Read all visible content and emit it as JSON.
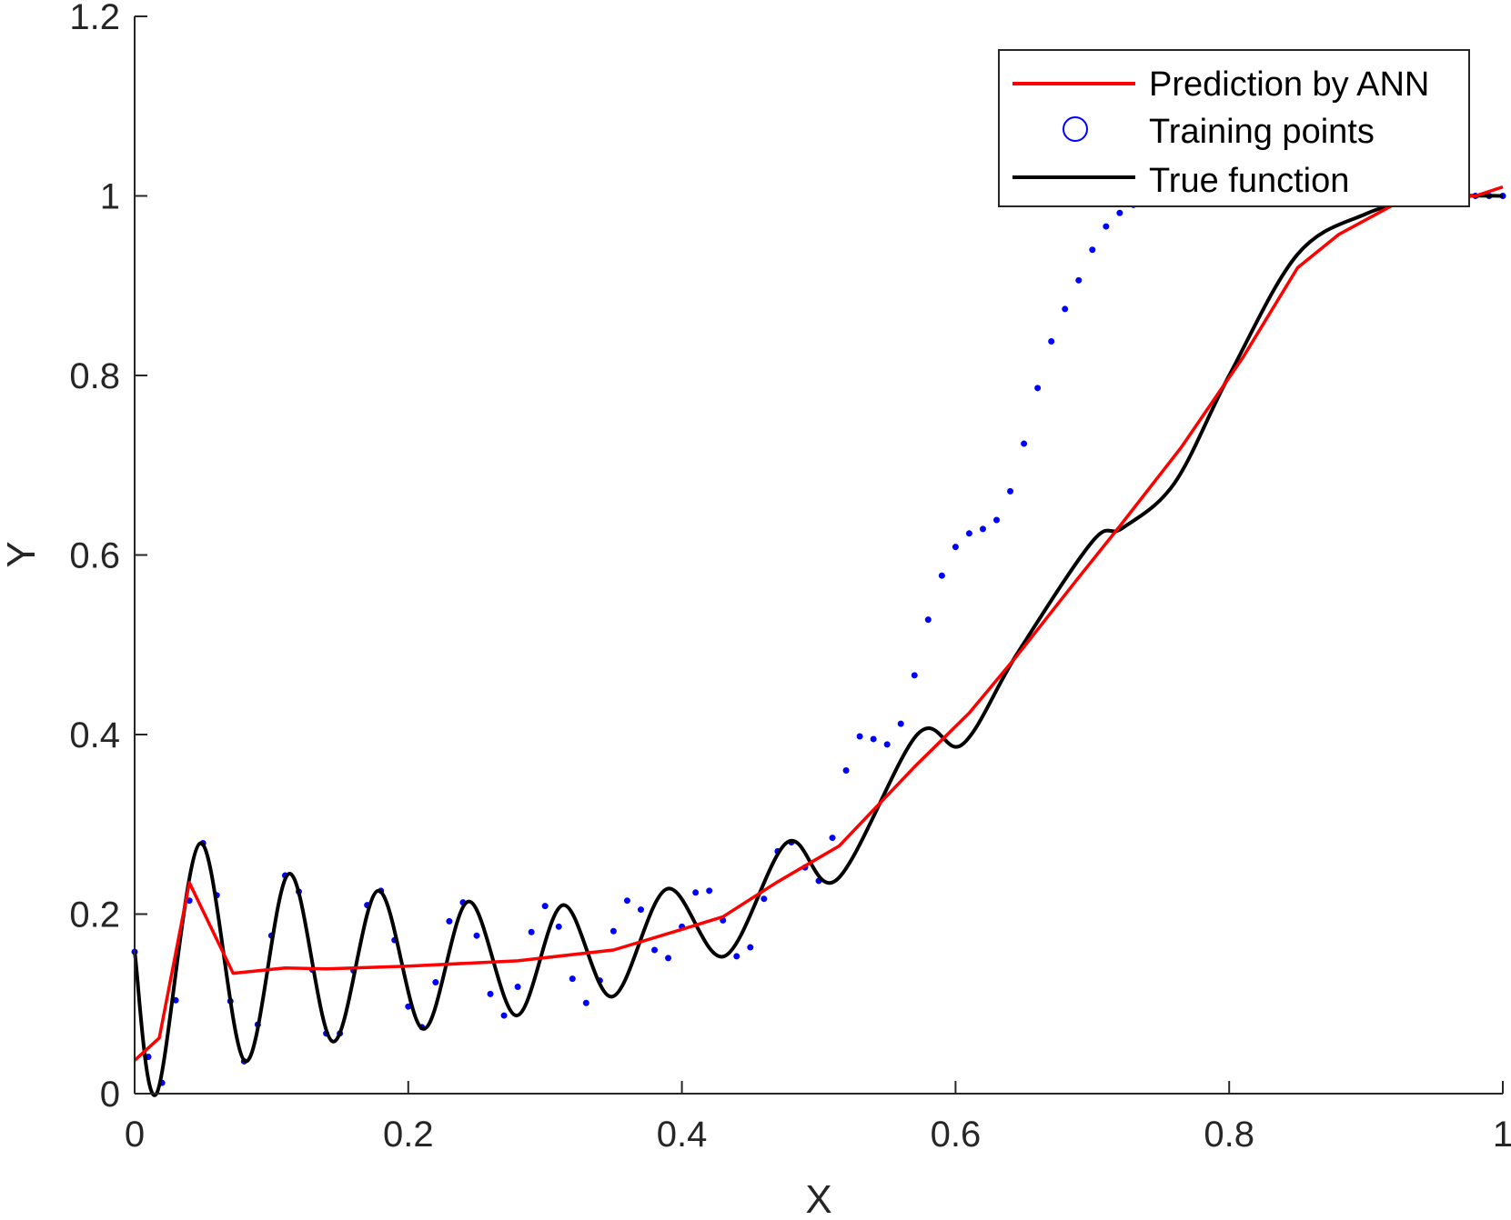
{
  "chart_data": {
    "type": "line",
    "xlabel": "X",
    "ylabel": "Y",
    "xlim": [
      0,
      1
    ],
    "ylim": [
      0,
      1.2
    ],
    "xticks": [
      0,
      0.2,
      0.4,
      0.6,
      0.8,
      1
    ],
    "xtick_labels": [
      "0",
      "0.2",
      "0.4",
      "0.6",
      "0.8",
      "1"
    ],
    "yticks": [
      0,
      0.2,
      0.4,
      0.6,
      0.8,
      1,
      1.2
    ],
    "ytick_labels": [
      "0",
      "0.2",
      "0.4",
      "0.6",
      "0.8",
      "1",
      "1.2"
    ],
    "grid": false,
    "legend_position": "top-right",
    "series": [
      {
        "name": "Prediction by ANN",
        "color": "#ff0000",
        "style": "line",
        "x": [
          0,
          0.018,
          0.04,
          0.072,
          0.11,
          0.14,
          0.2,
          0.28,
          0.35,
          0.4,
          0.43,
          0.47,
          0.515,
          0.57,
          0.61,
          0.645,
          0.69,
          0.72,
          0.765,
          0.81,
          0.85,
          0.88,
          0.92,
          0.95,
          0.98,
          1.0
        ],
        "y": [
          0.037,
          0.062,
          0.235,
          0.134,
          0.14,
          0.139,
          0.142,
          0.148,
          0.16,
          0.183,
          0.197,
          0.236,
          0.276,
          0.364,
          0.424,
          0.488,
          0.575,
          0.632,
          0.72,
          0.82,
          0.92,
          0.957,
          0.99,
          0.997,
          1.0,
          1.01
        ]
      },
      {
        "name": "Training points",
        "color": "#0000ff",
        "style": "markers",
        "x": [
          0,
          0.01,
          0.02,
          0.03,
          0.04,
          0.05,
          0.06,
          0.07,
          0.08,
          0.09,
          0.1,
          0.11,
          0.12,
          0.13,
          0.14,
          0.15,
          0.16,
          0.17,
          0.18,
          0.19,
          0.2,
          0.21,
          0.22,
          0.23,
          0.24,
          0.25,
          0.26,
          0.27,
          0.28,
          0.29,
          0.3,
          0.31,
          0.32,
          0.33,
          0.34,
          0.35,
          0.36,
          0.37,
          0.38,
          0.39,
          0.4,
          0.41,
          0.42,
          0.43,
          0.44,
          0.45,
          0.46,
          0.47,
          0.48,
          0.49,
          0.5,
          0.51,
          0.52,
          0.53,
          0.54,
          0.55,
          0.56,
          0.57,
          0.58,
          0.59,
          0.6,
          0.61,
          0.62,
          0.63,
          0.64,
          0.65,
          0.66,
          0.67,
          0.68,
          0.69,
          0.7,
          0.71,
          0.72,
          0.73,
          0.74,
          0.75,
          0.76,
          0.77,
          0.78,
          0.79,
          0.8,
          0.81,
          0.82,
          0.83,
          0.84,
          0.85,
          0.86,
          0.87,
          0.88,
          0.89,
          0.9,
          0.91,
          0.92,
          0.93,
          0.94,
          0.95,
          0.96,
          0.97,
          0.98,
          0.99,
          1.0
        ],
        "y": [
          0.158,
          0.041,
          0.012,
          0.104,
          0.215,
          0.279,
          0.221,
          0.103,
          0.036,
          0.077,
          0.176,
          0.243,
          0.225,
          0.138,
          0.067,
          0.067,
          0.137,
          0.21,
          0.226,
          0.171,
          0.097,
          0.074,
          0.124,
          0.192,
          0.213,
          0.176,
          0.111,
          0.087,
          0.119,
          0.18,
          0.209,
          0.186,
          0.128,
          0.101,
          0.126,
          0.181,
          0.215,
          0.205,
          0.16,
          0.151,
          0.186,
          0.224,
          0.226,
          0.193,
          0.153,
          0.163,
          0.217,
          0.27,
          0.28,
          0.252,
          0.237,
          0.285,
          0.36,
          0.398,
          0.395,
          0.389,
          0.412,
          0.466,
          0.528,
          0.577,
          0.609,
          0.624,
          0.629,
          0.639,
          0.671,
          0.724,
          0.786,
          0.838,
          0.874,
          0.906,
          0.94,
          0.966,
          0.981,
          0.99,
          0.995,
          0.998,
          1.0,
          1.0,
          1.0,
          1.0,
          1.0,
          1.0,
          1.0,
          1.0,
          1.0,
          1.0,
          1.0,
          1.0,
          1.0,
          1.0,
          1.0,
          1.0,
          1.0,
          1.0,
          1.0,
          1.0,
          1.0,
          1.0,
          1.0,
          1.0,
          1.0
        ]
      },
      {
        "name": "True function",
        "color": "#000000",
        "style": "line",
        "x": [
          0,
          0.016,
          0.048,
          0.081,
          0.113,
          0.145,
          0.178,
          0.211,
          0.244,
          0.279,
          0.313,
          0.349,
          0.389,
          0.431,
          0.477,
          0.513,
          0.572,
          0.605,
          0.645,
          0.7,
          0.722,
          0.76,
          0.8,
          0.85,
          0.9,
          0.94,
          0.97,
          1.0
        ],
        "y": [
          0.158,
          0.0,
          0.279,
          0.036,
          0.245,
          0.058,
          0.226,
          0.072,
          0.214,
          0.087,
          0.21,
          0.108,
          0.228,
          0.153,
          0.28,
          0.238,
          0.4,
          0.389,
          0.49,
          0.615,
          0.63,
          0.68,
          0.8,
          0.935,
          0.98,
          0.996,
          1.0,
          1.0
        ]
      }
    ]
  }
}
